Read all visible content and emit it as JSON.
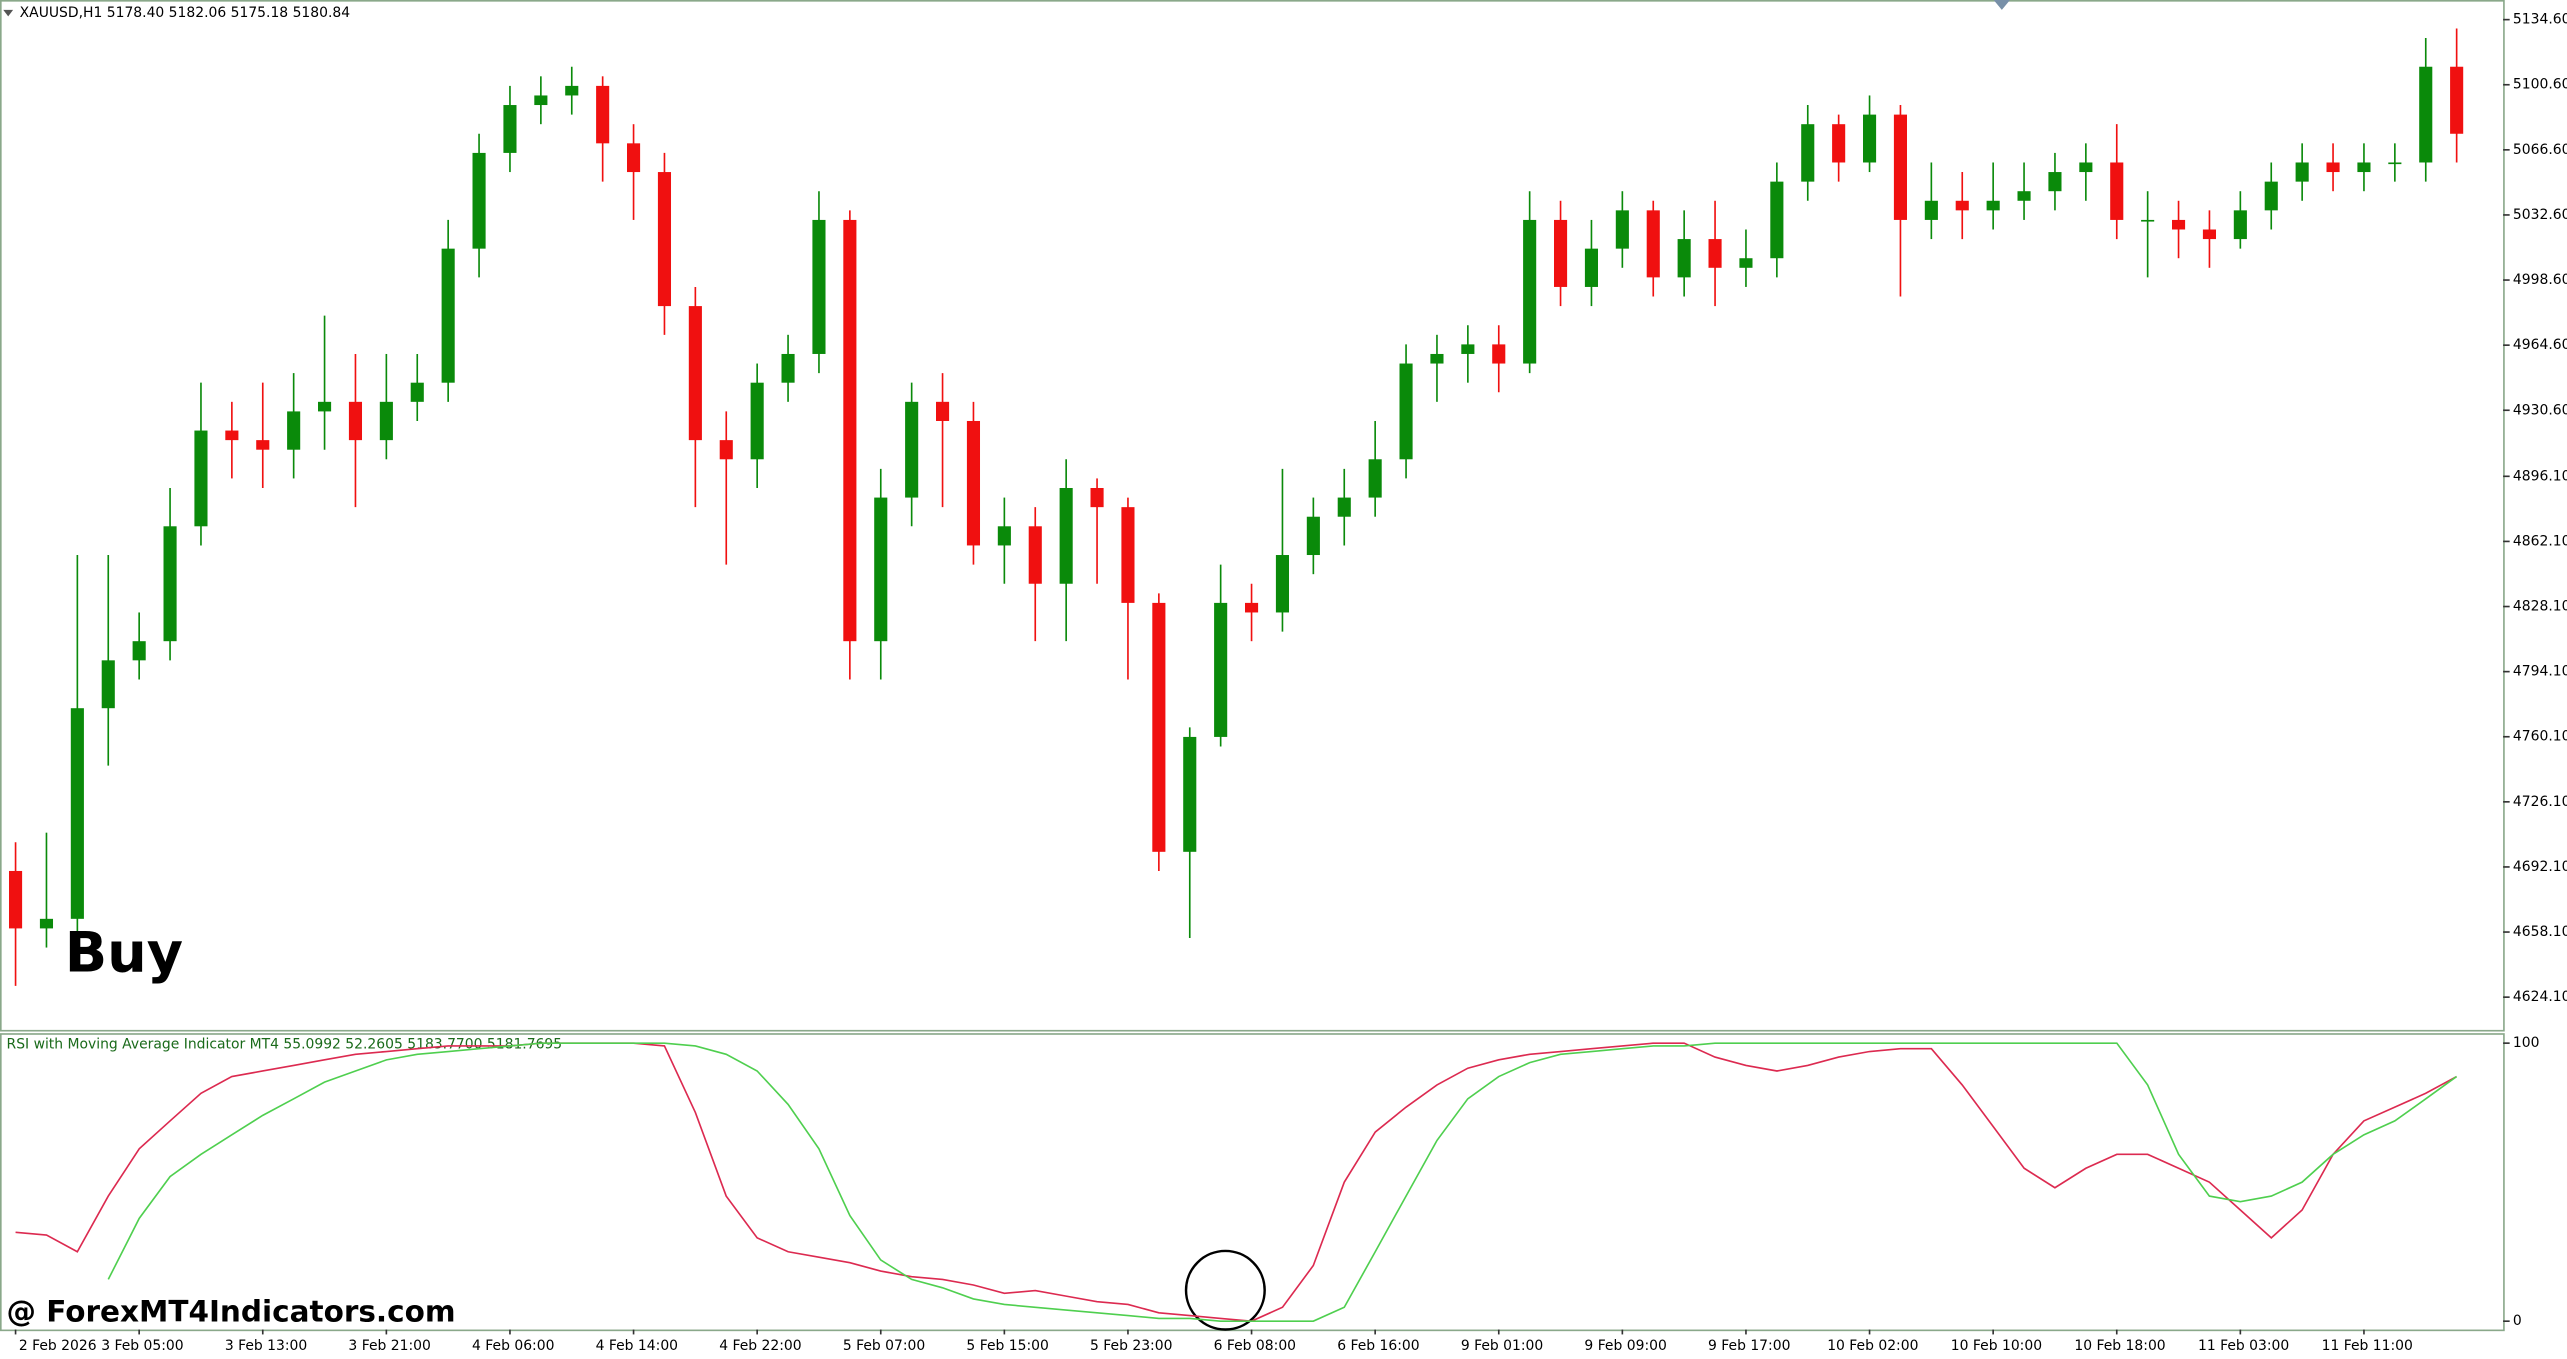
{
  "watermark": "@ ForexMT4Indicators.com",
  "chart_data": [
    {
      "type": "candlestick",
      "title": "XAUUSD,H1  5178.40 5182.06 5175.18 5180.84",
      "annotation": "Buy",
      "categories": [
        "2 Feb 2026",
        null,
        null,
        null,
        "3 Feb 05:00",
        null,
        null,
        null,
        "3 Feb 13:00",
        null,
        null,
        null,
        "3 Feb 21:00",
        null,
        null,
        null,
        "4 Feb 06:00",
        null,
        null,
        null,
        "4 Feb 14:00",
        null,
        null,
        null,
        "4 Feb 22:00",
        null,
        null,
        null,
        "5 Feb 07:00",
        null,
        null,
        null,
        "5 Feb 15:00",
        null,
        null,
        null,
        "5 Feb 23:00",
        null,
        null,
        null,
        "6 Feb 08:00",
        null,
        null,
        null,
        "6 Feb 16:00",
        null,
        null,
        null,
        "9 Feb 01:00",
        null,
        null,
        null,
        "9 Feb 09:00",
        null,
        null,
        null,
        "9 Feb 17:00",
        null,
        null,
        null,
        "10 Feb 02:00",
        null,
        null,
        null,
        "10 Feb 10:00",
        null,
        null,
        null,
        "10 Feb 18:00",
        null,
        null,
        null,
        "11 Feb 03:00",
        null,
        null,
        null,
        "11 Feb 11:00",
        null,
        null,
        null
      ],
      "open": [
        4690,
        4660,
        4665,
        4775,
        4800,
        4810,
        4870,
        4920,
        4915,
        4910,
        4930,
        4935,
        4915,
        4935,
        4945,
        5015,
        5065,
        5090,
        5095,
        5100,
        5070,
        5055,
        4985,
        4915,
        4905,
        4945,
        4960,
        5030,
        4810,
        4885,
        4935,
        4925,
        4860,
        4870,
        4840,
        4890,
        4880,
        4830,
        4700,
        4760,
        4830,
        4825,
        4855,
        4875,
        4885,
        4905,
        4955,
        4960,
        4965,
        4955,
        5030,
        4995,
        5015,
        5035,
        5000,
        5020,
        5005,
        5010,
        5050,
        5080,
        5060,
        5085,
        5030,
        5040,
        5035,
        5040,
        5045,
        5055,
        5060,
        5030,
        5030,
        5025,
        5020,
        5035,
        5050,
        5060,
        5055,
        5060,
        5060,
        5110
      ],
      "high": [
        4705,
        4710,
        4855,
        4855,
        4825,
        4890,
        4945,
        4935,
        4945,
        4950,
        4980,
        4960,
        4960,
        4960,
        5030,
        5075,
        5100,
        5105,
        5110,
        5105,
        5080,
        5065,
        4995,
        4930,
        4955,
        4970,
        5045,
        5035,
        4900,
        4945,
        4950,
        4935,
        4885,
        4880,
        4905,
        4895,
        4885,
        4835,
        4765,
        4850,
        4840,
        4900,
        4885,
        4900,
        4925,
        4965,
        4970,
        4975,
        4975,
        5045,
        5040,
        5030,
        5045,
        5040,
        5035,
        5040,
        5025,
        5060,
        5090,
        5085,
        5095,
        5090,
        5060,
        5055,
        5060,
        5060,
        5065,
        5070,
        5080,
        5045,
        5040,
        5035,
        5045,
        5060,
        5070,
        5070,
        5070,
        5070,
        5125,
        5130
      ],
      "low": [
        4630,
        4650,
        4655,
        4745,
        4790,
        4800,
        4860,
        4895,
        4890,
        4895,
        4910,
        4880,
        4905,
        4925,
        4935,
        5000,
        5055,
        5080,
        5085,
        5050,
        5030,
        4970,
        4880,
        4850,
        4890,
        4935,
        4950,
        4790,
        4790,
        4870,
        4880,
        4850,
        4840,
        4810,
        4810,
        4840,
        4790,
        4690,
        4655,
        4755,
        4810,
        4815,
        4845,
        4860,
        4875,
        4895,
        4935,
        4945,
        4940,
        4950,
        4985,
        4985,
        5005,
        4990,
        4990,
        4985,
        4995,
        5000,
        5040,
        5050,
        5055,
        4990,
        5020,
        5020,
        5025,
        5030,
        5035,
        5040,
        5020,
        5000,
        5010,
        5005,
        5015,
        5025,
        5040,
        5045,
        5045,
        5050,
        5050,
        5060
      ],
      "close": [
        4660,
        4665,
        4775,
        4800,
        4810,
        4870,
        4920,
        4915,
        4910,
        4930,
        4935,
        4915,
        4935,
        4945,
        5015,
        5065,
        5090,
        5095,
        5100,
        5070,
        5055,
        4985,
        4915,
        4905,
        4945,
        4960,
        5030,
        4810,
        4885,
        4935,
        4925,
        4860,
        4870,
        4840,
        4890,
        4880,
        4830,
        4700,
        4760,
        4830,
        4825,
        4855,
        4875,
        4885,
        4905,
        4955,
        4960,
        4965,
        4955,
        5030,
        4995,
        5015,
        5035,
        5000,
        5020,
        5005,
        5010,
        5050,
        5080,
        5060,
        5085,
        5030,
        5040,
        5035,
        5040,
        5045,
        5055,
        5060,
        5030,
        5030,
        5025,
        5020,
        5035,
        5050,
        5060,
        5055,
        5060,
        5060,
        5110,
        5075
      ],
      "up_color": "#0a8a0a",
      "down_color": "#f01010",
      "ylim": [
        4607,
        5144
      ],
      "yticks": [
        {
          "value": 5134.6,
          "label": "5134.60"
        },
        {
          "value": 5100.6,
          "label": "5100.60"
        },
        {
          "value": 5066.6,
          "label": "5066.60"
        },
        {
          "value": 5032.6,
          "label": "5032.60"
        },
        {
          "value": 4998.6,
          "label": "4998.60"
        },
        {
          "value": 4964.6,
          "label": "4964.60"
        },
        {
          "value": 4930.6,
          "label": "4930.60"
        },
        {
          "value": 4896.1,
          "label": "4896.10"
        },
        {
          "value": 4862.1,
          "label": "4862.10"
        },
        {
          "value": 4828.1,
          "label": "4828.10"
        },
        {
          "value": 4794.1,
          "label": "4794.10"
        },
        {
          "value": 4760.1,
          "label": "4760.10"
        },
        {
          "value": 4726.1,
          "label": "4726.10"
        },
        {
          "value": 4692.1,
          "label": "4692.10"
        },
        {
          "value": 4658.1,
          "label": "4658.10"
        },
        {
          "value": 4624.1,
          "label": "4624.10"
        }
      ]
    },
    {
      "type": "line",
      "title": "RSI with Moving Average Indicator MT4 55.0992 52.2605 5183.7700 5181.7695",
      "series": [
        {
          "color": "#dc2a50",
          "values": [
            32,
            31,
            25,
            45,
            62,
            72,
            82,
            88,
            90,
            92,
            94,
            96,
            97,
            98,
            99,
            99,
            99,
            100,
            100,
            100,
            100,
            99,
            75,
            45,
            30,
            25,
            23,
            21,
            18,
            16,
            15,
            13,
            10,
            11,
            9,
            7,
            6,
            3,
            2,
            1,
            0,
            5,
            20,
            50,
            68,
            77,
            85,
            91,
            94,
            96,
            97,
            98,
            99,
            100,
            100,
            95,
            92,
            90,
            92,
            95,
            97,
            98,
            98,
            85,
            70,
            55,
            48,
            55,
            60,
            60,
            55,
            50,
            40,
            30,
            40,
            60,
            72,
            77,
            82,
            88
          ]
        },
        {
          "color": "#4fcf4f",
          "values": [
            null,
            null,
            null,
            15,
            37,
            52,
            60,
            67,
            74,
            80,
            86,
            90,
            94,
            96,
            97,
            98,
            99,
            100,
            100,
            100,
            100,
            100,
            99,
            96,
            90,
            78,
            62,
            38,
            22,
            15,
            12,
            8,
            6,
            5,
            4,
            3,
            2,
            1,
            1,
            0,
            0,
            0,
            0,
            5,
            25,
            45,
            65,
            80,
            88,
            93,
            96,
            97,
            98,
            99,
            99,
            100,
            100,
            100,
            100,
            100,
            100,
            100,
            100,
            100,
            100,
            100,
            100,
            100,
            100,
            85,
            60,
            45,
            43,
            45,
            50,
            60,
            67,
            72,
            80,
            88
          ]
        }
      ],
      "ylim": [
        -3,
        103
      ],
      "yticks": [
        0,
        100
      ]
    }
  ]
}
